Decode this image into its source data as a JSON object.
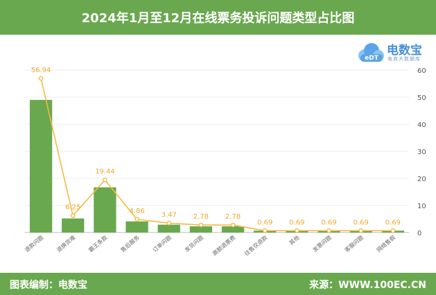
{
  "header": {
    "title": "2024年1月至12月在线票务投诉问题类型占比图"
  },
  "footer": {
    "left_text": "图表编制：电数宝",
    "right_text": "来源：WWW.100EC.CN"
  },
  "logo": {
    "brand": "电数宝",
    "icon_text": "eDT",
    "sub": "电商大数据库",
    "icon": "cloud-logo-icon"
  },
  "colors": {
    "header": "#6aa84f",
    "bar": "#6aa84f",
    "line": "#f4b942",
    "label": "#f0a830",
    "axis_text": "#555555"
  },
  "chart_data": {
    "type": "bar",
    "title": "2024年1月至12月在线票务投诉问题类型占比图",
    "categories": [
      "退款问题",
      "退换货难",
      "霸王条款",
      "售后服务",
      "订单问题",
      "发货问题",
      "高额退票费",
      "往售仅退款",
      "其他",
      "发票问题",
      "客服问题",
      "网络售假"
    ],
    "series": [
      {
        "type": "bar",
        "values": [
          49.0,
          5.2,
          16.7,
          4.1,
          2.9,
          2.3,
          2.3,
          0.7,
          0.7,
          0.7,
          0.7,
          0.7
        ]
      },
      {
        "type": "line",
        "values": [
          56.94,
          6.25,
          19.44,
          4.86,
          3.47,
          2.78,
          2.78,
          0.69,
          0.69,
          0.69,
          0.69,
          0.69
        ]
      }
    ],
    "data_labels": [
      "56.94",
      "6.25",
      "19.44",
      "4.86",
      "3.47",
      "2.78",
      "2.78",
      "0.69",
      "0.69",
      "0.69",
      "0.69",
      "0.69"
    ],
    "y_ticks": [
      "0",
      "10",
      "20",
      "30",
      "40",
      "50",
      "60"
    ],
    "ylim": [
      0,
      60
    ],
    "grid": true,
    "legend": "none"
  }
}
